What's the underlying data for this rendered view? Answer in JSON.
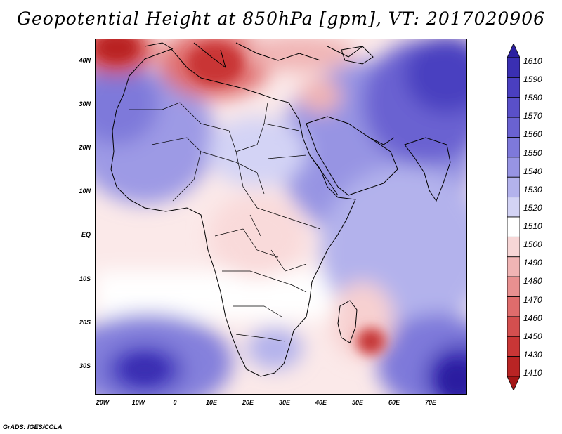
{
  "title": "Geopotential Height at 850hPa [gpm], VT: 2017020906",
  "credit": "GrADS: IGES/COLA",
  "map": {
    "variable": "Geopotential Height",
    "level": "850hPa",
    "units": "gpm",
    "valid_time": "2017020906",
    "lat_labels": [
      "40N",
      "30N",
      "20N",
      "10N",
      "EQ",
      "10S",
      "20S",
      "30S"
    ],
    "lon_labels": [
      "20W",
      "10W",
      "0",
      "10E",
      "20E",
      "30E",
      "40E",
      "50E",
      "60E",
      "70E"
    ]
  },
  "colorbar": {
    "labels": [
      "1610",
      "1590",
      "1580",
      "1570",
      "1560",
      "1550",
      "1540",
      "1530",
      "1520",
      "1510",
      "1500",
      "1490",
      "1480",
      "1470",
      "1460",
      "1450",
      "1430",
      "1410"
    ],
    "colors": [
      "#2b1fa0",
      "#3a2fb2",
      "#4a3fc0",
      "#5a50c9",
      "#6a62d1",
      "#7e79da",
      "#9794e3",
      "#b3b2ec",
      "#d3d3f5",
      "#ffffff",
      "#f7d6d6",
      "#f0b4b4",
      "#e89090",
      "#df6c6c",
      "#d44f4f",
      "#c93636",
      "#b92424",
      "#a41616"
    ]
  }
}
